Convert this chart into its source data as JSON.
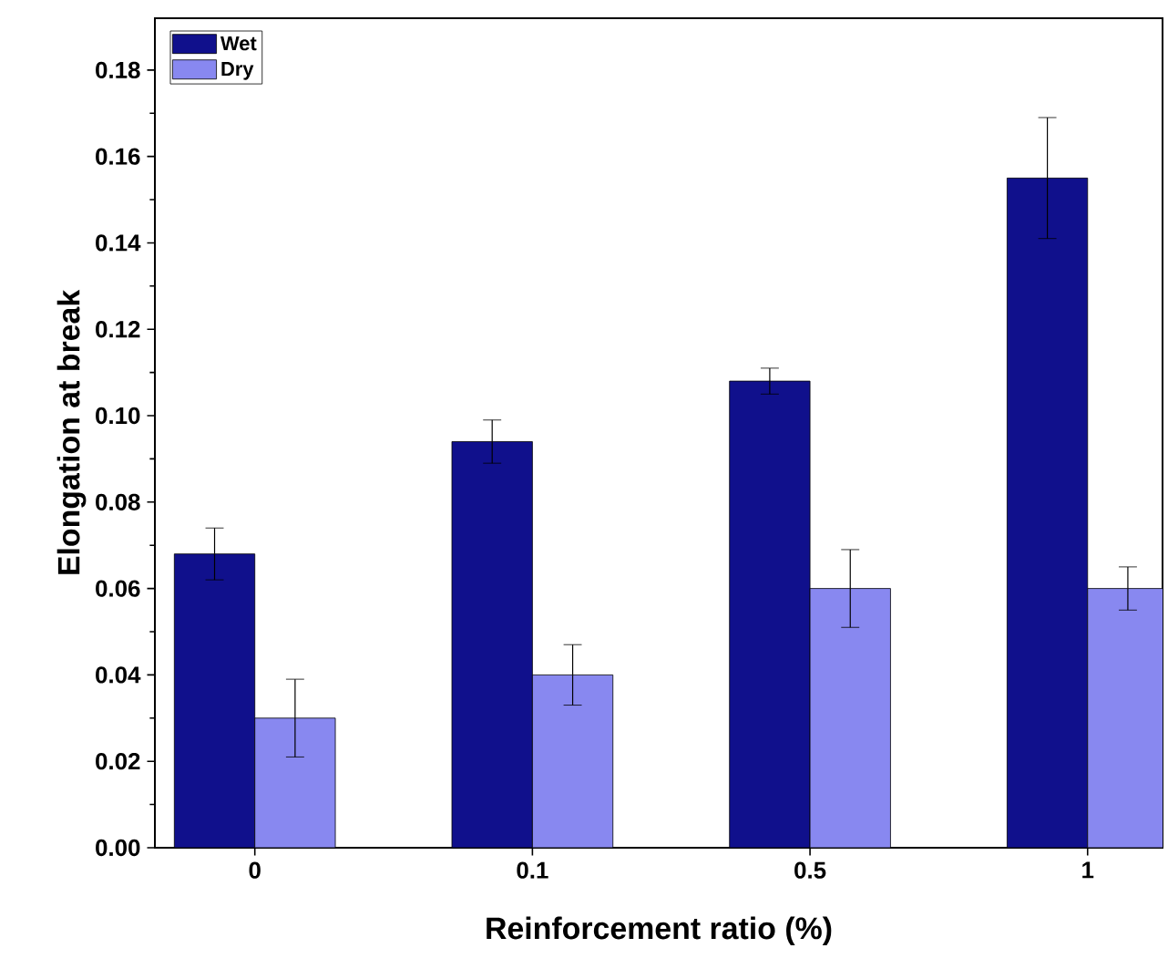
{
  "chart_data": {
    "type": "bar",
    "xlabel": "Reinforcement ratio (%)",
    "ylabel": "Elongation at break",
    "categories": [
      "0",
      "0.1",
      "0.5",
      "1"
    ],
    "series": [
      {
        "name": "Wet",
        "color": "#10108c",
        "values": [
          0.068,
          0.094,
          0.108,
          0.155
        ],
        "errors": [
          0.006,
          0.005,
          0.003,
          0.014
        ]
      },
      {
        "name": "Dry",
        "color": "#8888f0",
        "values": [
          0.03,
          0.04,
          0.06,
          0.06
        ],
        "errors": [
          0.009,
          0.007,
          0.009,
          0.005
        ]
      }
    ],
    "ylim": [
      0,
      0.192
    ],
    "yticks": [
      {
        "value": 0,
        "label": "0.00"
      },
      {
        "value": 0.02,
        "label": "0.02"
      },
      {
        "value": 0.04,
        "label": "0.04"
      },
      {
        "value": 0.06,
        "label": "0.06"
      },
      {
        "value": 0.08,
        "label": "0.08"
      },
      {
        "value": 0.1,
        "label": "0.10"
      },
      {
        "value": 0.12,
        "label": "0.12"
      },
      {
        "value": 0.14,
        "label": "0.14"
      },
      {
        "value": 0.16,
        "label": "0.16"
      },
      {
        "value": 0.18,
        "label": "0.18"
      }
    ],
    "legend": "top left",
    "grid": false
  }
}
